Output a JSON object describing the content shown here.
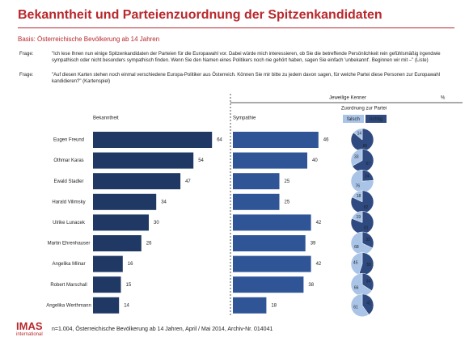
{
  "header": {
    "title": "Bekanntheit und Parteienzuordnung der Spitzenkandidaten",
    "basis": "Basis: Österreichische Bevölkerung ab 14 Jahren"
  },
  "questions": [
    {
      "label": "Frage:",
      "text": "\"Ich lese Ihnen nun einige Spitzenkandidaten der Parteien für die Europawahl vor. Dabei würde mich interessieren, ob Sie die betreffende Persönlichkeit rein gefühlsmäßig irgendwie sympathisch oder nicht besonders sympathisch finden. Wenn Sie den Namen eines Politikers noch nie gehört haben, sagen Sie einfach 'unbekannt'. Beginnen wir mit –\" (Liste)"
    },
    {
      "label": "Frage:",
      "text": "\"Auf diesen Karten stehen noch einmal verschiedene Europa-Politiker aus Österreich. Können Sie mir bitte zu jedem davon sagen, für welche Partei diese Personen zur Europawahl kandidieren?\" (Kartenspiel)"
    }
  ],
  "chart_data": {
    "type": "bar",
    "subtitle": "Jeweilige Kenner",
    "unit": "%",
    "categories": [
      "Eugen Freund",
      "Othmar Karas",
      "Ewald Stadler",
      "Harald Vilimsky",
      "Ulrike Lunacek",
      "Martin Ehrenhauser",
      "Angelika Mlinar",
      "Robert Marschall",
      "Angelika Werthmann"
    ],
    "series": [
      {
        "name": "Bekanntheit",
        "color": "#1f3864",
        "values": [
          64,
          54,
          47,
          34,
          30,
          26,
          16,
          15,
          14
        ]
      },
      {
        "name": "Sympathie",
        "color": "#2f5597",
        "values": [
          46,
          40,
          25,
          25,
          42,
          39,
          42,
          38,
          18
        ]
      }
    ],
    "pies": {
      "title": "Zuordnung zur Partei",
      "type": "pie",
      "series": [
        {
          "name": "falsch",
          "color": "#a9c4e6",
          "values": [
            14,
            33,
            76,
            18,
            19,
            68,
            45,
            66,
            61
          ]
        },
        {
          "name": "richtig",
          "color": "#2e4a80",
          "values": [
            86,
            67,
            24,
            82,
            81,
            32,
            55,
            34,
            41
          ]
        }
      ]
    }
  },
  "footer": {
    "logo": "IMAS",
    "logo_sub": "international",
    "note": "n=1.004, Österreichische Bevölkerung ab 14 Jahren, April / Mai 2014, Archiv-Nr. 014041"
  }
}
